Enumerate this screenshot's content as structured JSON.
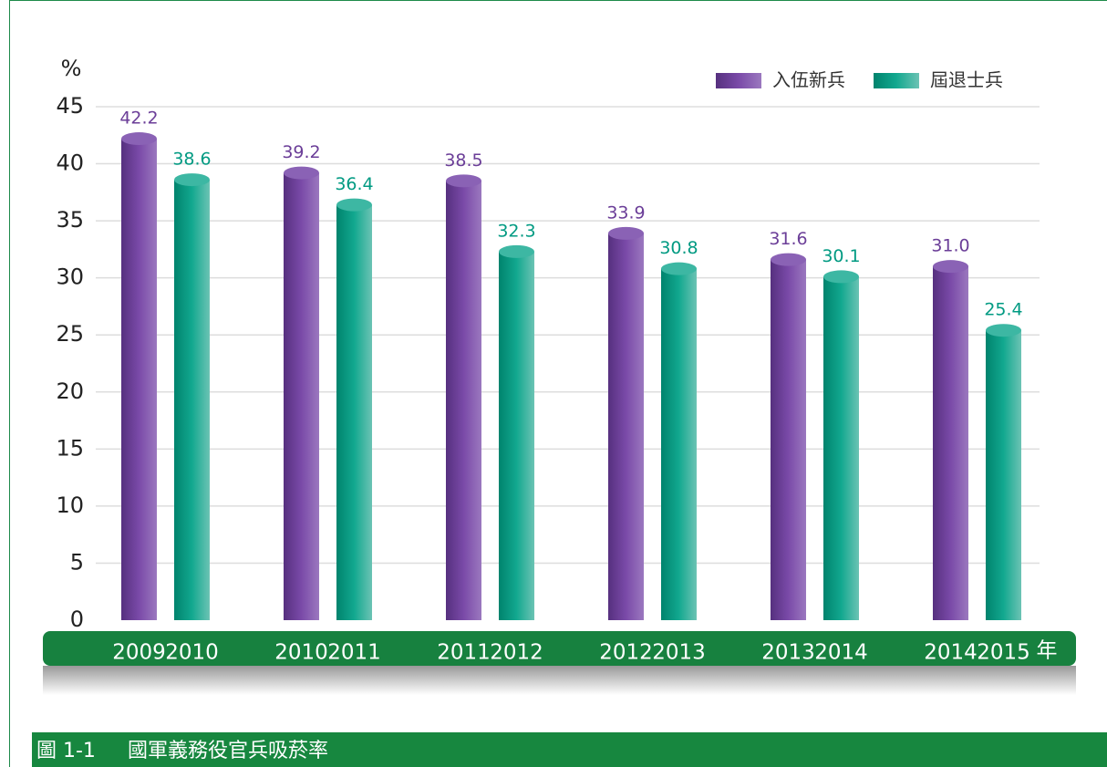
{
  "chart_data": {
    "type": "bar",
    "ylabel": "%",
    "xlabel": "年",
    "series": [
      {
        "name": "入伍新兵",
        "color": "#6b3e98",
        "x": [
          "2009",
          "2010",
          "2011",
          "2012",
          "2013",
          "2014"
        ],
        "values": [
          42.2,
          39.2,
          38.5,
          33.9,
          31.6,
          31.0
        ],
        "value_labels": [
          "42.2",
          "39.2",
          "38.5",
          "33.9",
          "31.6",
          "31.0"
        ]
      },
      {
        "name": "屆退士兵",
        "color": "#009a82",
        "x": [
          "2010",
          "2011",
          "2012",
          "2013",
          "2014",
          "2015"
        ],
        "values": [
          38.6,
          36.4,
          32.3,
          30.8,
          30.1,
          25.4
        ],
        "value_labels": [
          "38.6",
          "36.4",
          "32.3",
          "30.8",
          "30.1",
          "25.4"
        ]
      }
    ],
    "ylim": [
      0,
      45
    ],
    "yticks": [
      0,
      5,
      10,
      15,
      20,
      25,
      30,
      35,
      40,
      45
    ],
    "grid": true
  },
  "figure": {
    "label": "圖 1-1",
    "caption": "國軍義務役官兵吸菸率"
  }
}
